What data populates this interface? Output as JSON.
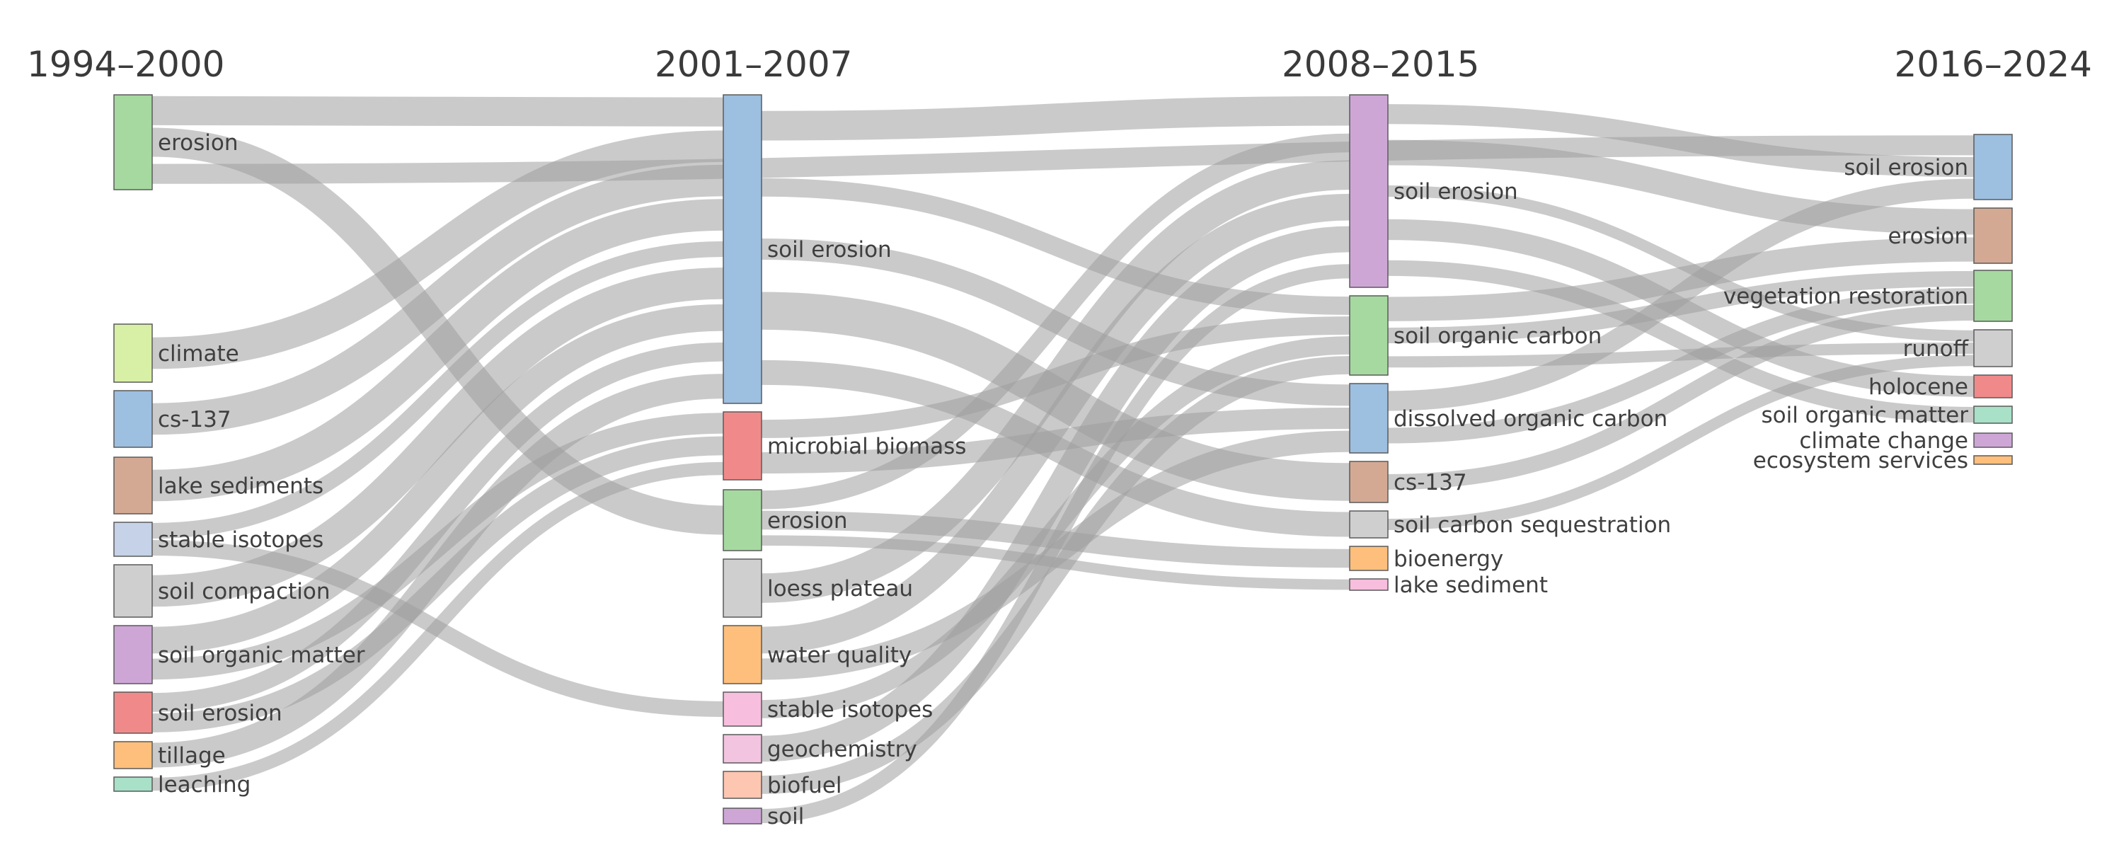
{
  "figure": {
    "periods": [
      "1994–2000",
      "2001–2007",
      "2008–2015",
      "2016–2024"
    ]
  },
  "columns": [
    {
      "period": "1994–2000",
      "nodes": [
        {
          "id": "a_erosion",
          "label": "erosion",
          "color": "#a6d9a0"
        },
        {
          "id": "a_climate",
          "label": "climate",
          "color": "#d8f0a6"
        },
        {
          "id": "a_cs137",
          "label": "cs-137",
          "color": "#9dbfe0"
        },
        {
          "id": "a_lake",
          "label": "lake sediments",
          "color": "#d4a994"
        },
        {
          "id": "a_stable",
          "label": "stable isotopes",
          "color": "#c5d2e8"
        },
        {
          "id": "a_compaction",
          "label": "soil compaction",
          "color": "#cfcfcf"
        },
        {
          "id": "a_som",
          "label": "soil organic matter",
          "color": "#cda6d6"
        },
        {
          "id": "a_soilerosion",
          "label": "soil erosion",
          "color": "#f08a8a"
        },
        {
          "id": "a_tillage",
          "label": "tillage",
          "color": "#fdbf7b"
        },
        {
          "id": "a_leaching",
          "label": "leaching",
          "color": "#a8e0c8"
        }
      ]
    },
    {
      "period": "2001–2007",
      "nodes": [
        {
          "id": "b_soilerosion",
          "label": "soil erosion",
          "color": "#9dbfe0"
        },
        {
          "id": "b_microbial",
          "label": "microbial biomass",
          "color": "#f08a8a"
        },
        {
          "id": "b_erosion",
          "label": "erosion",
          "color": "#a6d9a0"
        },
        {
          "id": "b_loess",
          "label": "loess plateau",
          "color": "#cfcfcf"
        },
        {
          "id": "b_water",
          "label": "water quality",
          "color": "#fdbf7b"
        },
        {
          "id": "b_stable",
          "label": "stable isotopes",
          "color": "#f7bedd"
        },
        {
          "id": "b_geochem",
          "label": "geochemistry",
          "color": "#f2c4e0"
        },
        {
          "id": "b_biofuel",
          "label": "biofuel",
          "color": "#fcc6b0"
        },
        {
          "id": "b_soil",
          "label": "soil",
          "color": "#cda6d6"
        }
      ]
    },
    {
      "period": "2008–2015",
      "nodes": [
        {
          "id": "c_soilerosion",
          "label": "soil erosion",
          "color": "#cda6d6"
        },
        {
          "id": "c_soc",
          "label": "soil organic carbon",
          "color": "#a6d9a0"
        },
        {
          "id": "c_doc",
          "label": "dissolved organic carbon",
          "color": "#9dbfe0"
        },
        {
          "id": "c_cs137",
          "label": "cs-137",
          "color": "#d4a994"
        },
        {
          "id": "c_seq",
          "label": "soil carbon sequestration",
          "color": "#cfcfcf"
        },
        {
          "id": "c_bioenergy",
          "label": "bioenergy",
          "color": "#fdbf7b"
        },
        {
          "id": "c_lake",
          "label": "lake sediment",
          "color": "#f7bedd"
        }
      ]
    },
    {
      "period": "2016–2024",
      "nodes": [
        {
          "id": "d_soilerosion",
          "label": "soil erosion",
          "color": "#9dbfe0"
        },
        {
          "id": "d_erosion",
          "label": "erosion",
          "color": "#d4a994"
        },
        {
          "id": "d_veg",
          "label": "vegetation restoration",
          "color": "#a6d9a0"
        },
        {
          "id": "d_runoff",
          "label": "runoff",
          "color": "#cfcfcf"
        },
        {
          "id": "d_holocene",
          "label": "holocene",
          "color": "#f08a8a"
        },
        {
          "id": "d_som",
          "label": "soil organic matter",
          "color": "#a8e0c8"
        },
        {
          "id": "d_climate",
          "label": "climate change",
          "color": "#cda6d6"
        },
        {
          "id": "d_eco",
          "label": "ecosystem services",
          "color": "#fdbf7b"
        }
      ]
    }
  ],
  "flows": [
    {
      "source": "a_erosion",
      "target": "b_soilerosion"
    },
    {
      "source": "a_erosion",
      "target": "b_erosion"
    },
    {
      "source": "a_climate",
      "target": "b_soilerosion"
    },
    {
      "source": "a_cs137",
      "target": "b_soilerosion"
    },
    {
      "source": "a_lake",
      "target": "b_soilerosion"
    },
    {
      "source": "a_stable",
      "target": "b_soilerosion"
    },
    {
      "source": "a_stable",
      "target": "b_stable"
    },
    {
      "source": "a_compaction",
      "target": "b_soilerosion"
    },
    {
      "source": "a_som",
      "target": "b_soilerosion"
    },
    {
      "source": "a_som",
      "target": "b_microbial"
    },
    {
      "source": "a_soilerosion",
      "target": "b_soilerosion"
    },
    {
      "source": "a_soilerosion",
      "target": "b_microbial"
    },
    {
      "source": "a_tillage",
      "target": "b_soilerosion"
    },
    {
      "source": "a_leaching",
      "target": "b_microbial"
    },
    {
      "source": "b_soilerosion",
      "target": "c_soilerosion"
    },
    {
      "source": "b_soilerosion",
      "target": "c_soc"
    },
    {
      "source": "b_soilerosion",
      "target": "c_doc"
    },
    {
      "source": "b_soilerosion",
      "target": "c_cs137"
    },
    {
      "source": "b_soilerosion",
      "target": "c_seq"
    },
    {
      "source": "b_microbial",
      "target": "c_soc"
    },
    {
      "source": "b_microbial",
      "target": "c_doc"
    },
    {
      "source": "b_erosion",
      "target": "c_bioenergy"
    },
    {
      "source": "b_erosion",
      "target": "c_lake"
    },
    {
      "source": "b_erosion",
      "target": "c_soilerosion"
    },
    {
      "source": "b_loess",
      "target": "c_soilerosion"
    },
    {
      "source": "b_water",
      "target": "c_soilerosion"
    },
    {
      "source": "b_water",
      "target": "c_doc"
    },
    {
      "source": "b_stable",
      "target": "c_soc"
    },
    {
      "source": "b_geochem",
      "target": "c_soilerosion"
    },
    {
      "source": "b_biofuel",
      "target": "c_soc"
    },
    {
      "source": "b_soil",
      "target": "c_soilerosion"
    },
    {
      "source": "a_erosion",
      "target": "d_soilerosion"
    },
    {
      "source": "c_soilerosion",
      "target": "d_soilerosion"
    },
    {
      "source": "c_soilerosion",
      "target": "d_erosion"
    },
    {
      "source": "c_soilerosion",
      "target": "d_runoff"
    },
    {
      "source": "c_soilerosion",
      "target": "d_holocene"
    },
    {
      "source": "c_soilerosion",
      "target": "d_som"
    },
    {
      "source": "c_soc",
      "target": "d_erosion"
    },
    {
      "source": "c_soc",
      "target": "d_veg"
    },
    {
      "source": "c_soc",
      "target": "d_runoff"
    },
    {
      "source": "c_doc",
      "target": "d_veg"
    },
    {
      "source": "c_doc",
      "target": "d_soilerosion"
    },
    {
      "source": "c_cs137",
      "target": "d_veg"
    },
    {
      "source": "c_seq",
      "target": "d_runoff"
    }
  ]
}
